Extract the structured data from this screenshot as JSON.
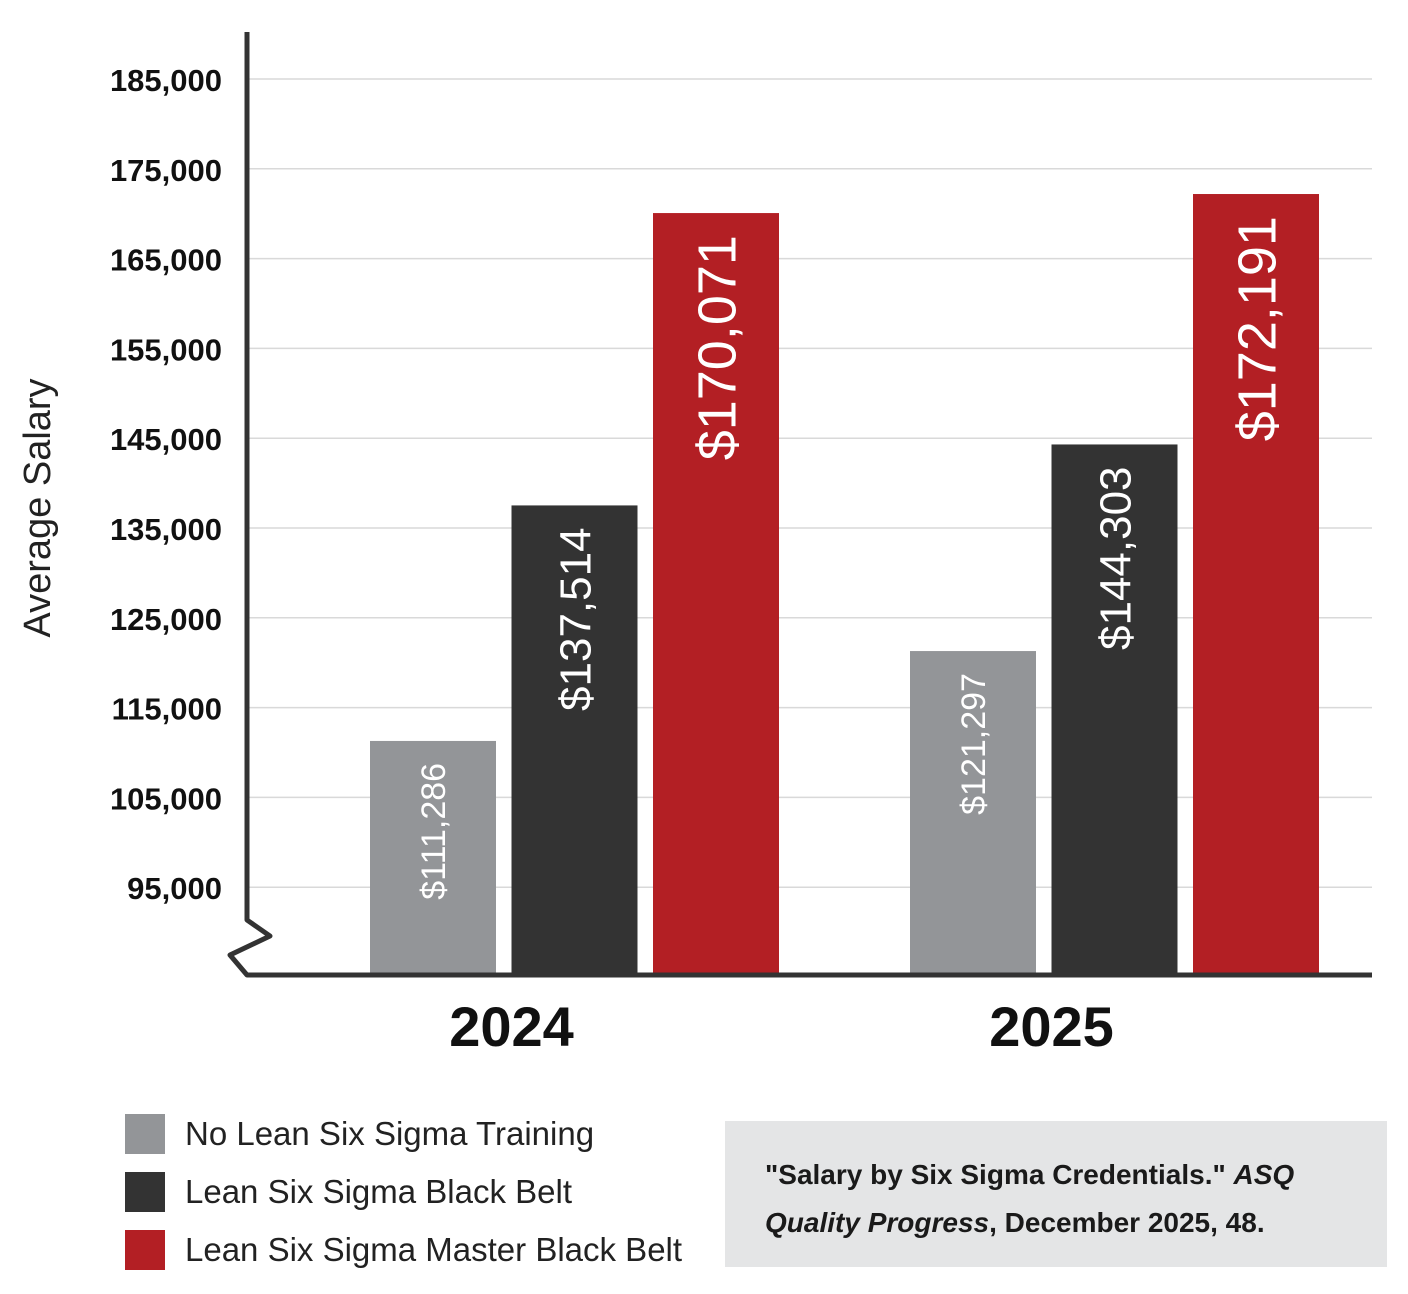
{
  "chart_data": {
    "type": "bar",
    "ylabel": "Average Salary",
    "xlabel": "",
    "ylim": [
      85000,
      190000
    ],
    "y_ticks": [
      95000,
      105000,
      115000,
      125000,
      135000,
      145000,
      155000,
      165000,
      175000,
      185000
    ],
    "y_tick_labels": [
      "95,000",
      "105,000",
      "115,000",
      "125,000",
      "135,000",
      "145,000",
      "155,000",
      "165,000",
      "175,000",
      "185,000"
    ],
    "grid": true,
    "axis_break": true,
    "categories": [
      "2024",
      "2025"
    ],
    "series": [
      {
        "name": "No Lean Six Sigma Training",
        "color": "#939598",
        "values": [
          111286,
          121297
        ],
        "labels": [
          "$111,286",
          "$121,297"
        ]
      },
      {
        "name": "Lean Six Sigma Black Belt",
        "color": "#333333",
        "values": [
          137514,
          144303
        ],
        "labels": [
          "$137,514",
          "$144,303"
        ]
      },
      {
        "name": "Lean Six Sigma Master Black Belt",
        "color": "#b31f24",
        "values": [
          170071,
          172191
        ],
        "labels": [
          "$170,071",
          "$172,191"
        ]
      }
    ],
    "legend_position": "bottom-left"
  },
  "citation": {
    "prefix": "\"Salary by Six Sigma Credentials.\"",
    "journal_line1": "ASQ",
    "journal_line2": "Quality Progress",
    "suffix": ", December 2025, 48."
  }
}
